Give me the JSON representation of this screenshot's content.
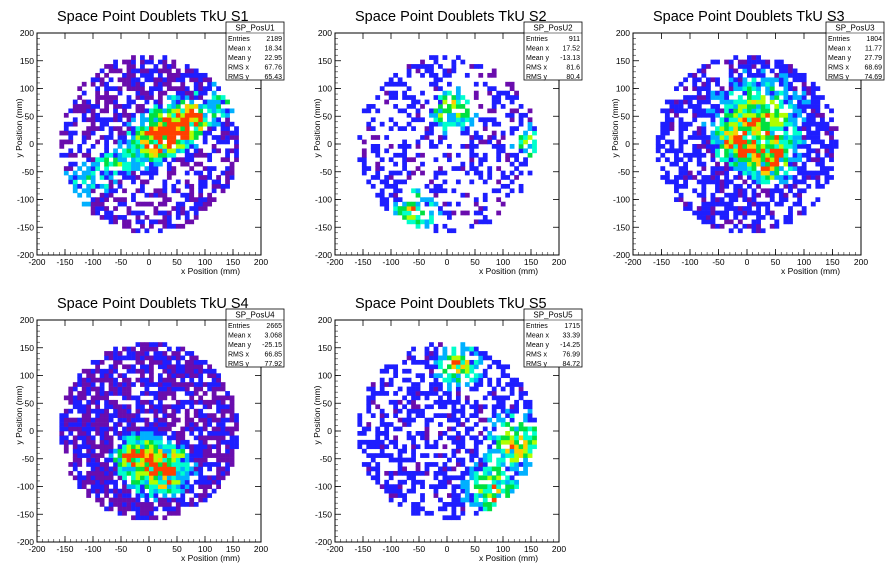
{
  "chart_data": [
    {
      "type": "heatmap",
      "title": "Space Point Doublets TkU S1",
      "xlabel": "x Position (mm)",
      "ylabel": "y Position (mm)",
      "xlim": [
        -200,
        200
      ],
      "ylim": [
        -200,
        200
      ],
      "xticks": [
        -200,
        -150,
        -100,
        -50,
        0,
        50,
        100,
        150,
        200
      ],
      "yticks": [
        -200,
        -150,
        -100,
        -50,
        0,
        50,
        100,
        150,
        200
      ],
      "colormap": [
        "#6a0dad",
        "#1e1eff",
        "#00b0ff",
        "#00ffcc",
        "#00e040",
        "#b0ff00",
        "#ffcc00",
        "#ff4000"
      ],
      "stats": {
        "name": "SP_PosU1",
        "rows": [
          [
            "Entries",
            "2189"
          ],
          [
            "Mean x",
            "18.34"
          ],
          [
            "Mean y",
            "22.95"
          ],
          [
            "RMS x",
            "67.76"
          ],
          [
            "RMS y",
            "65.43"
          ]
        ]
      },
      "cluster": {
        "occupancy": 0.55,
        "low_bias": 0.55,
        "band_slope": 0.6,
        "band_offset": 0,
        "band_width": 25,
        "hotspots": [
          [
            20,
            15,
            30
          ],
          [
            60,
            40,
            25
          ]
        ]
      }
    },
    {
      "type": "heatmap",
      "title": "Space Point Doublets TkU S2",
      "xlabel": "x Position (mm)",
      "ylabel": "y Position (mm)",
      "xlim": [
        -200,
        200
      ],
      "ylim": [
        -200,
        200
      ],
      "xticks": [
        -200,
        -150,
        -100,
        -50,
        0,
        50,
        100,
        150,
        200
      ],
      "yticks": [
        -200,
        -150,
        -100,
        -50,
        0,
        50,
        100,
        150,
        200
      ],
      "colormap": [
        "#6a0dad",
        "#1e1eff",
        "#00b0ff",
        "#00ffcc",
        "#00e040",
        "#b0ff00",
        "#ffcc00",
        "#ff4000"
      ],
      "stats": {
        "name": "SP_PosU2",
        "rows": [
          [
            "Entries",
            "911"
          ],
          [
            "Mean x",
            "17.52"
          ],
          [
            "Mean y",
            "-13.13"
          ],
          [
            "RMS x",
            "81.6"
          ],
          [
            "RMS y",
            "80.4"
          ]
        ]
      },
      "cluster": {
        "occupancy": 0.36,
        "low_bias": 0.2,
        "band_slope": 0,
        "band_offset": 0,
        "band_width": 0,
        "hotspots": [
          [
            10,
            60,
            25
          ],
          [
            -60,
            -120,
            25
          ],
          [
            150,
            0,
            20
          ]
        ]
      }
    },
    {
      "type": "heatmap",
      "title": "Space Point Doublets TkU S3",
      "xlabel": "x Position (mm)",
      "ylabel": "y Position (mm)",
      "xlim": [
        -200,
        200
      ],
      "ylim": [
        -200,
        200
      ],
      "xticks": [
        -200,
        -150,
        -100,
        -50,
        0,
        50,
        100,
        150,
        200
      ],
      "yticks": [
        -200,
        -150,
        -100,
        -50,
        0,
        50,
        100,
        150,
        200
      ],
      "colormap": [
        "#6a0dad",
        "#1e1eff",
        "#00b0ff",
        "#00ffcc",
        "#00e040",
        "#b0ff00",
        "#ffcc00",
        "#ff4000"
      ],
      "stats": {
        "name": "SP_PosU3",
        "rows": [
          [
            "Entries",
            "1804"
          ],
          [
            "Mean x",
            "11.77"
          ],
          [
            "Mean y",
            "27.79"
          ],
          [
            "RMS x",
            "68.69"
          ],
          [
            "RMS y",
            "74.69"
          ]
        ]
      },
      "cluster": {
        "occupancy": 0.6,
        "low_bias": 0.2,
        "band_slope": 0,
        "band_offset": 0,
        "band_width": 0,
        "hotspots": [
          [
            20,
            40,
            50
          ],
          [
            40,
            -30,
            25
          ],
          [
            -20,
            0,
            20
          ]
        ]
      }
    },
    {
      "type": "heatmap",
      "title": "Space Point Doublets TkU S4",
      "xlabel": "x Position (mm)",
      "ylabel": "y Position (mm)",
      "xlim": [
        -200,
        200
      ],
      "ylim": [
        -200,
        200
      ],
      "xticks": [
        -200,
        -150,
        -100,
        -50,
        0,
        50,
        100,
        150,
        200
      ],
      "yticks": [
        -200,
        -150,
        -100,
        -50,
        0,
        50,
        100,
        150,
        200
      ],
      "colormap": [
        "#6a0dad",
        "#1e1eff",
        "#00b0ff",
        "#00ffcc",
        "#00e040",
        "#b0ff00",
        "#ffcc00",
        "#ff4000"
      ],
      "stats": {
        "name": "SP_PosU4",
        "rows": [
          [
            "Entries",
            "2665"
          ],
          [
            "Mean x",
            "3.068"
          ],
          [
            "Mean y",
            "-25.15"
          ],
          [
            "RMS x",
            "66.85"
          ],
          [
            "RMS y",
            "77.92"
          ]
        ]
      },
      "cluster": {
        "occupancy": 0.75,
        "low_bias": 0.6,
        "band_slope": 0,
        "band_offset": 0,
        "band_width": 0,
        "hotspots": [
          [
            0,
            -60,
            35
          ],
          [
            40,
            -70,
            25
          ],
          [
            -30,
            -40,
            20
          ]
        ]
      }
    },
    {
      "type": "heatmap",
      "title": "Space Point Doublets TkU S5",
      "xlabel": "x Position (mm)",
      "ylabel": "y Position (mm)",
      "xlim": [
        -200,
        200
      ],
      "ylim": [
        -200,
        200
      ],
      "xticks": [
        -200,
        -150,
        -100,
        -50,
        0,
        50,
        100,
        150,
        200
      ],
      "yticks": [
        -200,
        -150,
        -100,
        -50,
        0,
        50,
        100,
        150,
        200
      ],
      "colormap": [
        "#6a0dad",
        "#1e1eff",
        "#00b0ff",
        "#00ffcc",
        "#00e040",
        "#b0ff00",
        "#ffcc00",
        "#ff4000"
      ],
      "stats": {
        "name": "SP_PosU5",
        "rows": [
          [
            "Entries",
            "1715"
          ],
          [
            "Mean x",
            "33.39"
          ],
          [
            "Mean y",
            "-14.25"
          ],
          [
            "RMS x",
            "76.99"
          ],
          [
            "RMS y",
            "84.72"
          ]
        ]
      },
      "cluster": {
        "occupancy": 0.5,
        "low_bias": 0.15,
        "band_slope": 0,
        "band_offset": 0,
        "band_width": 0,
        "hotspots": [
          [
            130,
            -20,
            35
          ],
          [
            80,
            -110,
            30
          ],
          [
            20,
            120,
            25
          ]
        ]
      }
    }
  ]
}
